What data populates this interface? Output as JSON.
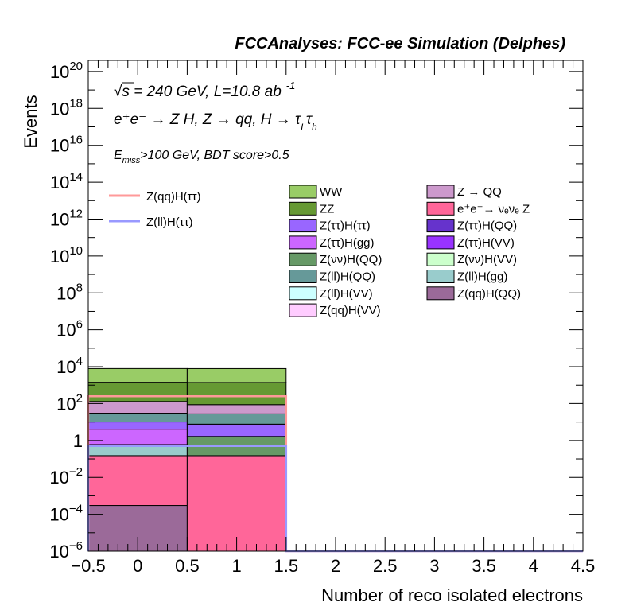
{
  "header": "FCCAnalyses: FCC-ee Simulation (Delphes)",
  "annotations": {
    "energy": "√s = 240 GeV, L=10.8 ab",
    "lumi_sup": "-1",
    "process": "e⁺e⁻ → Z H, Z → qq, H → τ",
    "process_sub_L": "L",
    "process_tau2": "τ",
    "process_sub_h": "h",
    "cut_E": "E",
    "cut_miss": "miss",
    "cut_rest": ">100 GeV, BDT score>0.5"
  },
  "chart_data": {
    "type": "bar",
    "stacked": true,
    "log_y": true,
    "xlabel": "Number of reco isolated electrons",
    "ylabel": "Events",
    "xlim": [
      -0.5,
      4.5
    ],
    "ylim_exp": [
      -6,
      20.6
    ],
    "x_ticks": [
      "−0.5",
      "0",
      "0.5",
      "1",
      "1.5",
      "2",
      "2.5",
      "3",
      "3.5",
      "4",
      "4.5"
    ],
    "x_tick_values": [
      -0.5,
      0,
      0.5,
      1,
      1.5,
      2,
      2.5,
      3,
      3.5,
      4,
      4.5
    ],
    "y_ticks": [
      {
        "base": "10",
        "exp": "−6",
        "e": -6
      },
      {
        "base": "10",
        "exp": "−4",
        "e": -4
      },
      {
        "base": "10",
        "exp": "−2",
        "e": -2
      },
      {
        "base": "1",
        "exp": "",
        "e": 0
      },
      {
        "base": "10",
        "exp": "2",
        "e": 2
      },
      {
        "base": "10",
        "exp": "4",
        "e": 4
      },
      {
        "base": "10",
        "exp": "6",
        "e": 6
      },
      {
        "base": "10",
        "exp": "8",
        "e": 8
      },
      {
        "base": "10",
        "exp": "10",
        "e": 10
      },
      {
        "base": "10",
        "exp": "12",
        "e": 12
      },
      {
        "base": "10",
        "exp": "14",
        "e": 14
      },
      {
        "base": "10",
        "exp": "16",
        "e": 16
      },
      {
        "base": "10",
        "exp": "18",
        "e": 18
      },
      {
        "base": "10",
        "exp": "20",
        "e": 20
      }
    ],
    "bins": [
      [
        -0.5,
        0.5
      ],
      [
        0.5,
        1.5
      ],
      [
        1.5,
        2.5
      ],
      [
        2.5,
        3.5
      ],
      [
        3.5,
        4.5
      ]
    ],
    "stack_order_bottom_to_top": [
      {
        "name": "Z(qq)H(QQ)",
        "color": "#9b6a99",
        "values": [
          0.0003,
          0,
          0,
          0,
          0
        ]
      },
      {
        "name": "e⁺e⁻→ νₑνₑ Z",
        "color": "#ff6699",
        "values": [
          0.15,
          0.15,
          0,
          0,
          0
        ]
      },
      {
        "name": "Z(ll)H(gg)",
        "color": "#99cccc",
        "values": [
          0.45,
          0,
          0,
          0,
          0
        ]
      },
      {
        "name": "Z(νν)H(QQ)",
        "color": "#669966",
        "values": [
          0,
          1.5,
          0,
          0,
          0
        ]
      },
      {
        "name": "Z(ττ)H(gg)",
        "color": "#cc66ff",
        "values": [
          3.5,
          0,
          0,
          0,
          0
        ]
      },
      {
        "name": "Z(ττ)H(ττ)",
        "color": "#9966ff",
        "values": [
          6,
          6,
          0,
          0,
          0
        ]
      },
      {
        "name": "Z(ll)H(QQ)",
        "color": "#669999",
        "values": [
          20,
          20,
          0,
          0,
          0
        ]
      },
      {
        "name": "Z → QQ",
        "color": "#cc99cc",
        "values": [
          100,
          60,
          0,
          0,
          0
        ]
      },
      {
        "name": "ZZ",
        "color": "#669933",
        "values": [
          1300,
          1300,
          0,
          0,
          0
        ]
      },
      {
        "name": "WW",
        "color": "#99cc66",
        "values": [
          6500,
          6500,
          0,
          0,
          0
        ]
      }
    ],
    "signals": [
      {
        "name": "Z(qq)H(ττ)",
        "color": "#ff9999",
        "values": [
          250,
          250,
          0,
          0,
          0
        ]
      },
      {
        "name": "Z(ll)H(ττ)",
        "color": "#9999ff",
        "values": [
          0.5,
          0.5,
          0,
          0,
          0
        ]
      }
    ],
    "legend": {
      "signals": [
        "Z(qq)H(ττ)",
        "Z(ll)H(ττ)"
      ],
      "col1": [
        {
          "name": "WW",
          "color": "#99cc66"
        },
        {
          "name": "ZZ",
          "color": "#669933"
        },
        {
          "name": "Z(ττ)H(ττ)",
          "color": "#9966ff"
        },
        {
          "name": "Z(ττ)H(gg)",
          "color": "#cc66ff"
        },
        {
          "name": "Z(νν)H(QQ)",
          "color": "#669966"
        },
        {
          "name": "Z(ll)H(QQ)",
          "color": "#669999"
        },
        {
          "name": "Z(ll)H(VV)",
          "color": "#ccffff"
        },
        {
          "name": "Z(qq)H(VV)",
          "color": "#ffccff"
        }
      ],
      "col2": [
        {
          "name": "Z → QQ",
          "color": "#cc99cc"
        },
        {
          "name": "e⁺e⁻→ νₑνₑ Z",
          "color": "#ff6699"
        },
        {
          "name": "Z(ττ)H(QQ)",
          "color": "#6633cc"
        },
        {
          "name": "Z(ττ)H(VV)",
          "color": "#9933ff"
        },
        {
          "name": "Z(νν)H(VV)",
          "color": "#ccffcc"
        },
        {
          "name": "Z(ll)H(gg)",
          "color": "#99cccc"
        },
        {
          "name": "Z(qq)H(QQ)",
          "color": "#9b6a99"
        }
      ]
    }
  }
}
